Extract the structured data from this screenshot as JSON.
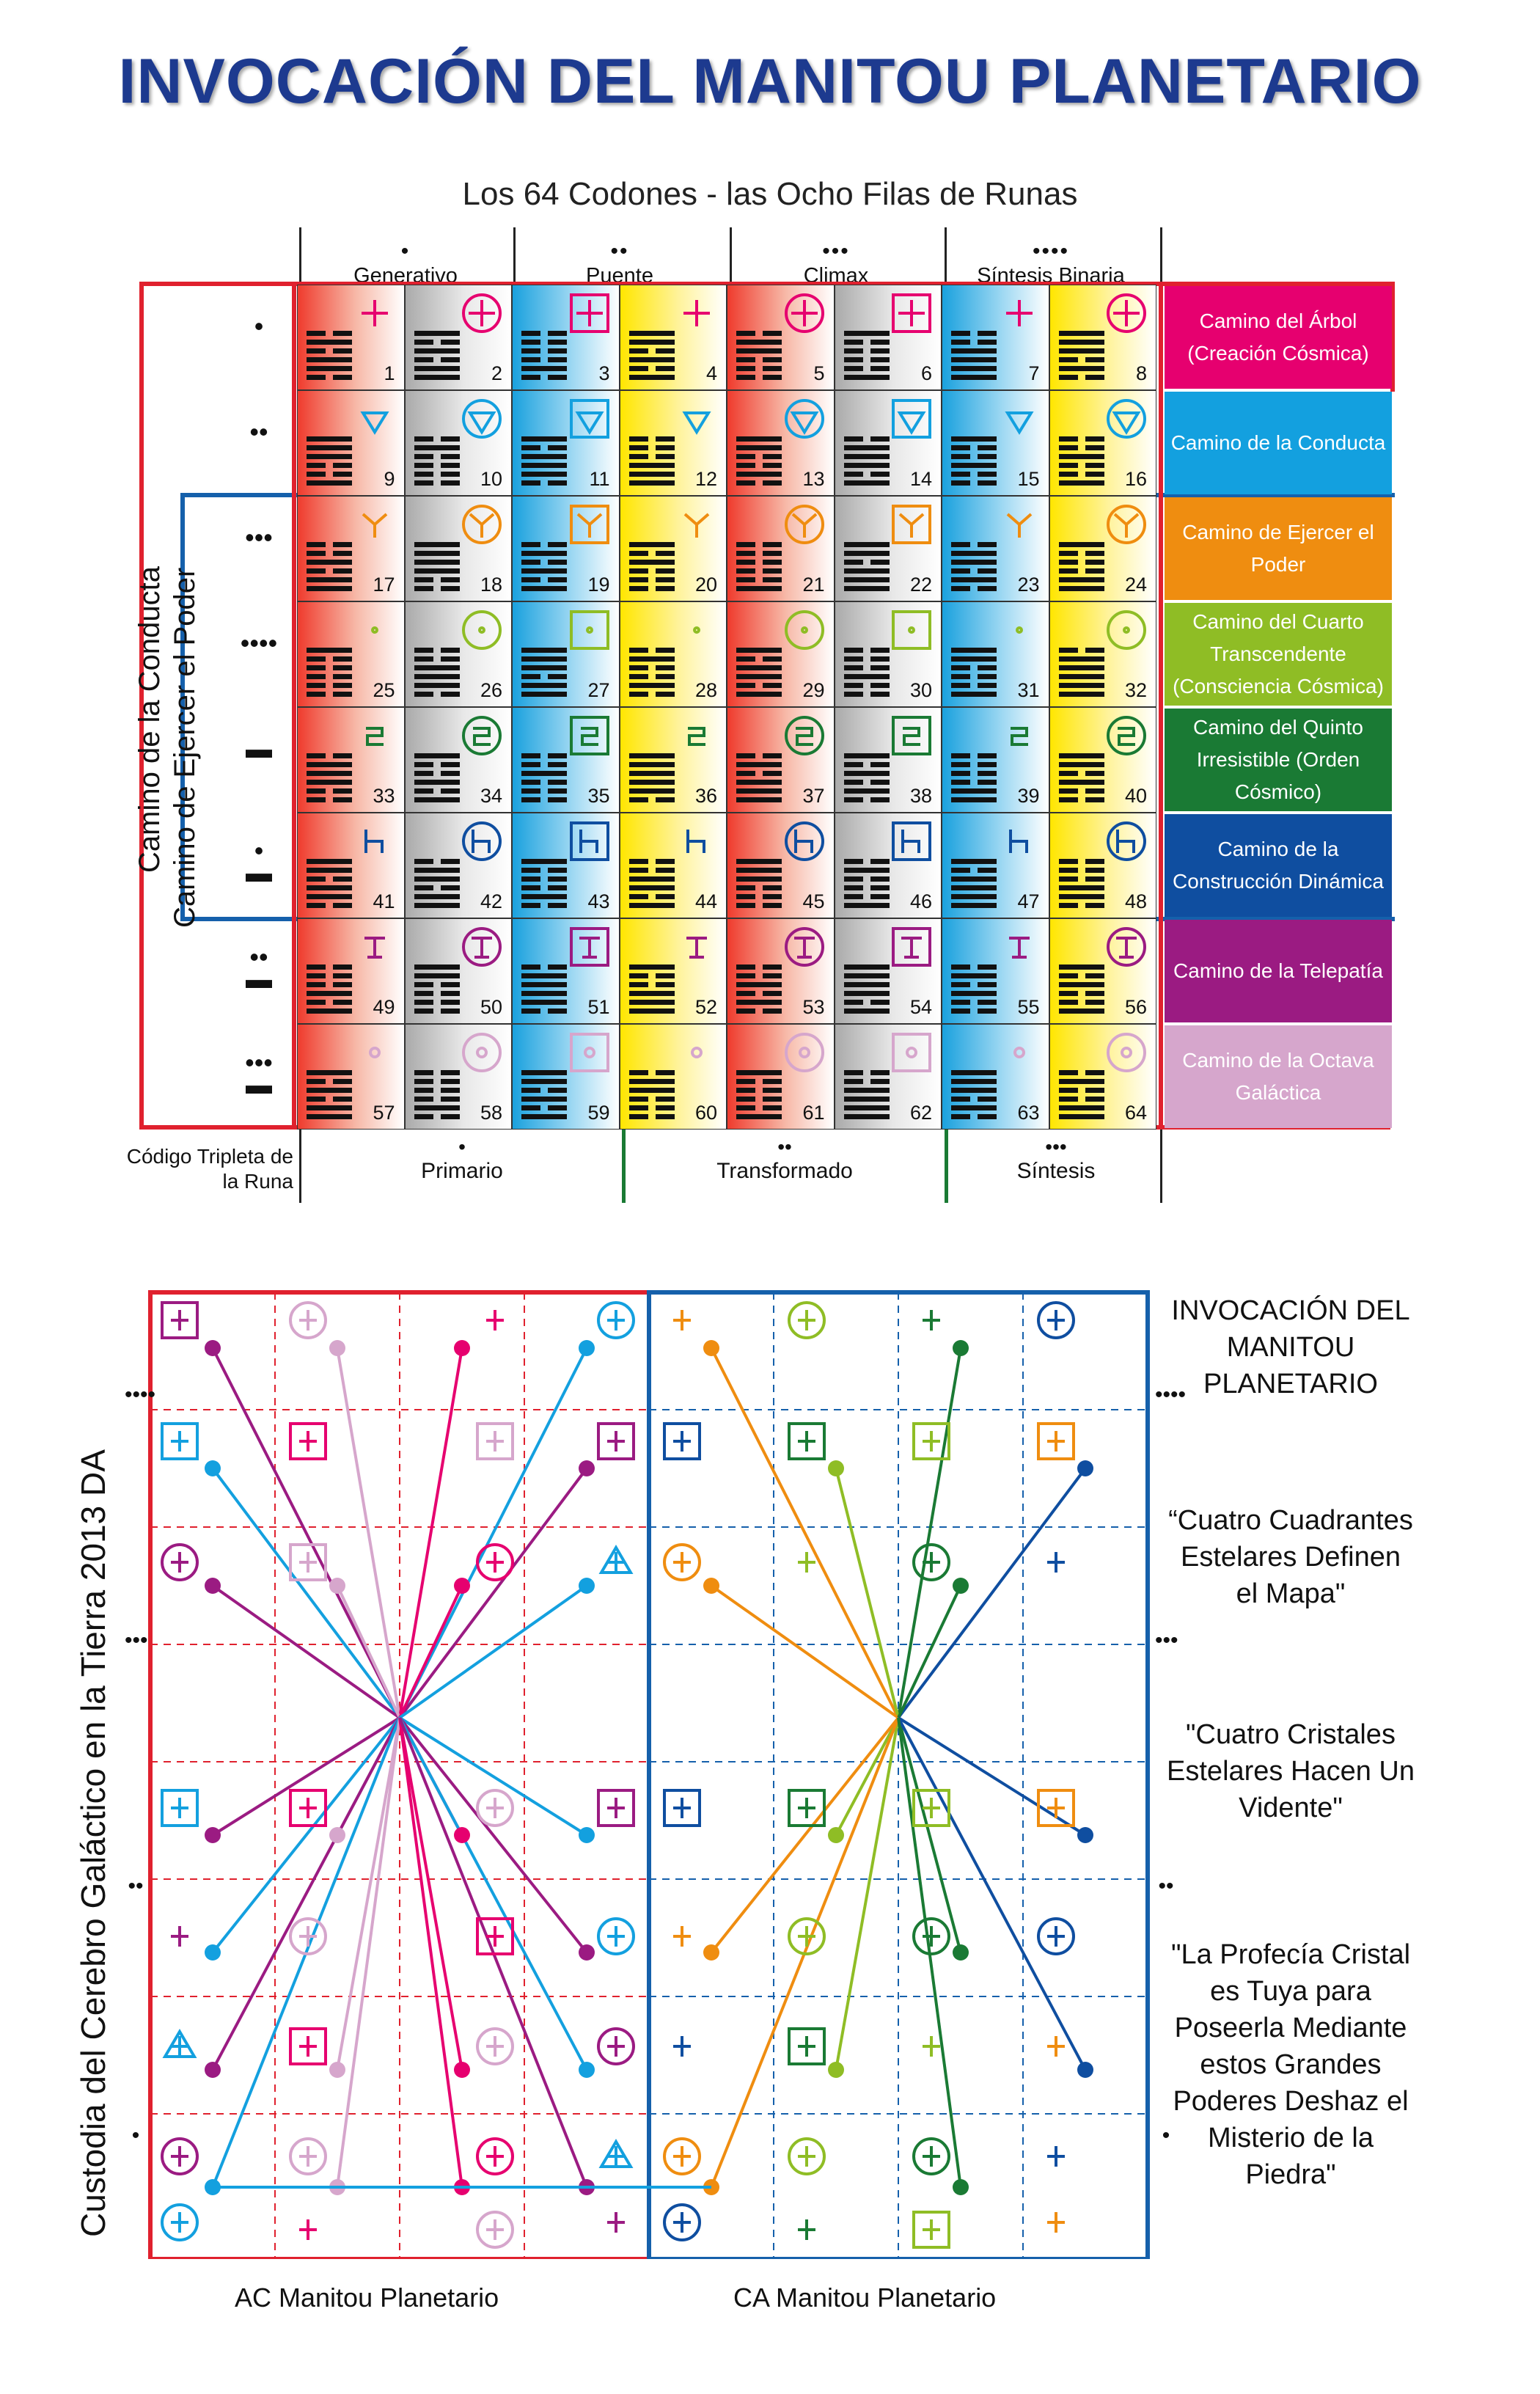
{
  "title": "INVOCACIÓN DEL MANITOU PLANETARIO",
  "subtitle": "Los 64 Codones - las Ocho Filas de Runas",
  "columns": [
    {
      "dots": "•",
      "label": "Generativo"
    },
    {
      "dots": "••",
      "label": "Puente"
    },
    {
      "dots": "•••",
      "label": "Climax"
    },
    {
      "dots": "••••",
      "label": "Síntesis Binaria"
    }
  ],
  "row_labels": [
    {
      "text": "Camino del Árbol (Creación Cósmica)",
      "color": "#e6006f"
    },
    {
      "text": "Camino de la Conducta",
      "color": "#13a0df"
    },
    {
      "text": "Camino de Ejercer el Poder",
      "color": "#ef8d10"
    },
    {
      "text": "Camino del Cuarto Transcendente (Consciencia Cósmica)",
      "color": "#8fbd25"
    },
    {
      "text": "Camino del Quinto Irresistible (Orden Cósmico)",
      "color": "#1a7a34"
    },
    {
      "text": "Camino de la Construcción Dinámica",
      "color": "#0f4ea0"
    },
    {
      "text": "Camino de la Telepatía",
      "color": "#9b1b82"
    },
    {
      "text": "Camino de la Octava Galáctica",
      "color": "#d6a6cc"
    }
  ],
  "row_dots": [
    "•",
    "••",
    "•••",
    "••••",
    "▬",
    "•\n▬",
    "••\n▬",
    "•••\n▬"
  ],
  "side_labels": {
    "outer": "Camino de la Conducta",
    "inner": "Camino de Ejercer el Poder"
  },
  "codon_numbers": [
    1,
    2,
    3,
    4,
    5,
    6,
    7,
    8,
    9,
    10,
    11,
    12,
    13,
    14,
    15,
    16,
    17,
    18,
    19,
    20,
    21,
    22,
    23,
    24,
    25,
    26,
    27,
    28,
    29,
    30,
    31,
    32,
    33,
    34,
    35,
    36,
    37,
    38,
    39,
    40,
    41,
    42,
    43,
    44,
    45,
    46,
    47,
    48,
    49,
    50,
    51,
    52,
    53,
    54,
    55,
    56,
    57,
    58,
    59,
    60,
    61,
    62,
    63,
    64
  ],
  "footer": {
    "triplet": "Código Tripleta de la Runa",
    "primario": "Primario",
    "transformado": "Transformado",
    "sintesis": "Síntesis",
    "dots_primario": "•",
    "dots_transformado": "••",
    "dots_sintesis": "•••"
  },
  "vertical_caption": "Custodia del Cerebro Galáctico en la Tierra 2013 DA",
  "bottom_labels": {
    "left": "AC Manitou Planetario",
    "right": "CA Manitou Planetario"
  },
  "right_texts": [
    "INVOCACIÓN DEL MANITOU PLANETARIO",
    "“Cuatro Cuadrantes Estelares Definen el Mapa\"",
    "\"Cuatro Cristales Estelares Hacen Un Vidente\"",
    "\"La Profecía Cristal es Tuya para Poseerla Mediante estos Grandes Poderes Deshaz el Misterio de la Piedra\""
  ],
  "side_dots": [
    "••••",
    "•••",
    "••",
    "•"
  ],
  "colors": {
    "red": "#e0212e",
    "blue": "#1560ab",
    "title": "#1d3a8f",
    "green_div": "#1a7a34"
  }
}
